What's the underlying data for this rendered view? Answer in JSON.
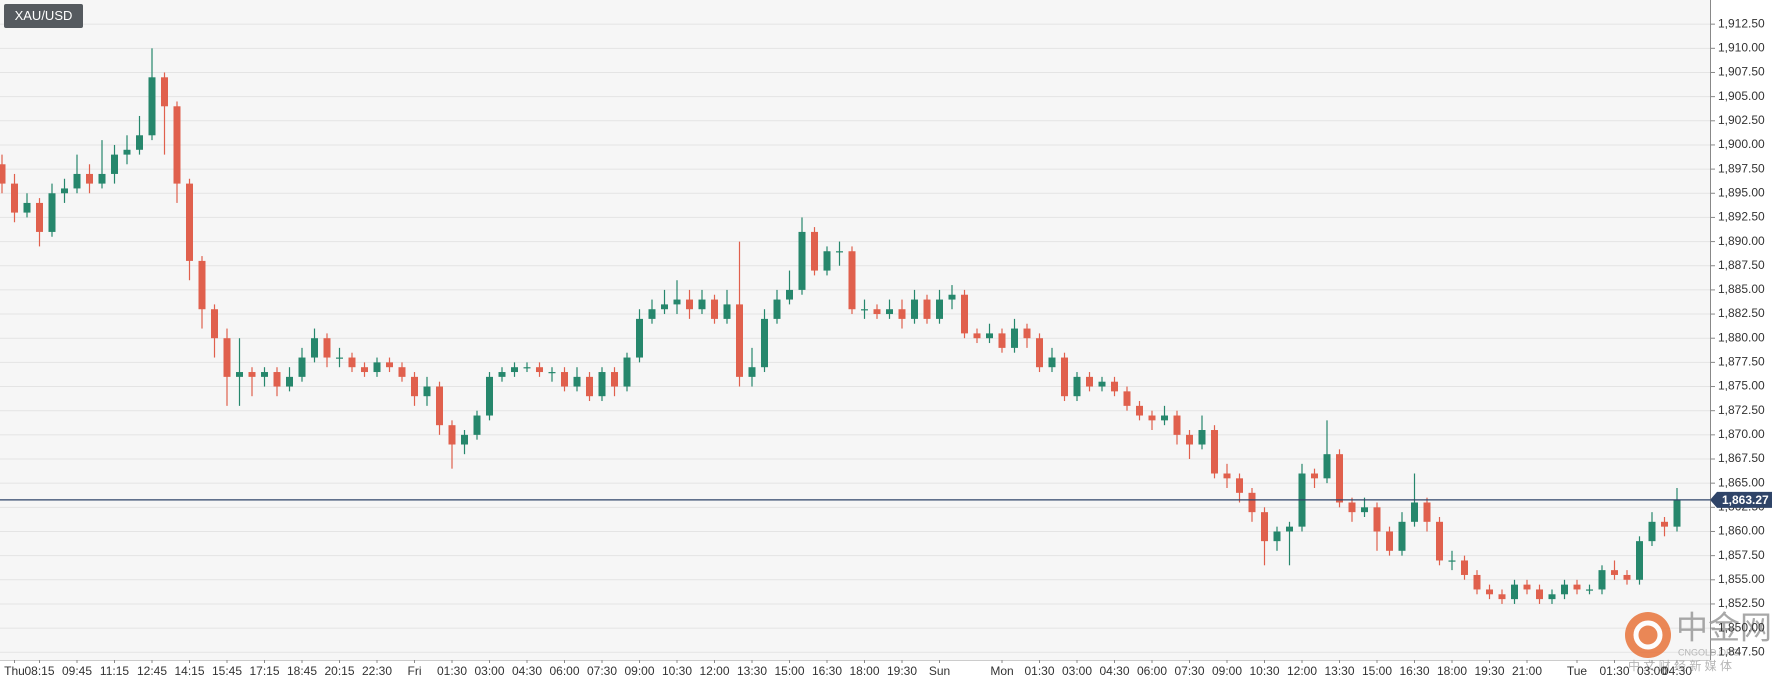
{
  "chart_data": {
    "type": "candlestick",
    "title": "XAU/USD",
    "up_color": "#26876c",
    "down_color": "#e0604d",
    "grid": true,
    "ylim": [
      1846.7,
      1915
    ],
    "yticks": [
      {
        "value": 1847.5,
        "label": "1,847.50"
      },
      {
        "value": 1850,
        "label": "1,850.00"
      },
      {
        "value": 1852.5,
        "label": "1,852.50"
      },
      {
        "value": 1855,
        "label": "1,855.00"
      },
      {
        "value": 1857.5,
        "label": "1,857.50"
      },
      {
        "value": 1860,
        "label": "1,860.00"
      },
      {
        "value": 1862.5,
        "label": "1,862.50"
      },
      {
        "value": 1865,
        "label": "1,865.00"
      },
      {
        "value": 1867.5,
        "label": "1,867.50"
      },
      {
        "value": 1870,
        "label": "1,870.00"
      },
      {
        "value": 1872.5,
        "label": "1,872.50"
      },
      {
        "value": 1875,
        "label": "1,875.00"
      },
      {
        "value": 1877.5,
        "label": "1,877.50"
      },
      {
        "value": 1880,
        "label": "1,880.00"
      },
      {
        "value": 1882.5,
        "label": "1,882.50"
      },
      {
        "value": 1885,
        "label": "1,885.00"
      },
      {
        "value": 1887.5,
        "label": "1,887.50"
      },
      {
        "value": 1890,
        "label": "1,890.00"
      },
      {
        "value": 1892.5,
        "label": "1,892.50"
      },
      {
        "value": 1895,
        "label": "1,895.00"
      },
      {
        "value": 1897.5,
        "label": "1,897.50"
      },
      {
        "value": 1900,
        "label": "1,900.00"
      },
      {
        "value": 1902.5,
        "label": "1,902.50"
      },
      {
        "value": 1905,
        "label": "1,905.00"
      },
      {
        "value": 1907.5,
        "label": "1,907.50"
      },
      {
        "value": 1910,
        "label": "1,910.00"
      },
      {
        "value": 1912.5,
        "label": "1,912.50"
      }
    ],
    "last_price": {
      "value": 1863.27,
      "label": "1,863.27"
    },
    "categories": [
      null,
      "Thu",
      null,
      "08:15",
      null,
      null,
      "09:45",
      null,
      null,
      "11:15",
      null,
      null,
      "12:45",
      null,
      null,
      "14:15",
      null,
      null,
      "15:45",
      null,
      null,
      "17:15",
      null,
      null,
      "18:45",
      null,
      null,
      "20:15",
      null,
      null,
      "22:30",
      null,
      null,
      "Fri",
      null,
      null,
      "01:30",
      null,
      null,
      "03:00",
      null,
      null,
      "04:30",
      null,
      null,
      "06:00",
      null,
      null,
      "07:30",
      null,
      null,
      "09:00",
      null,
      null,
      "10:30",
      null,
      null,
      "12:00",
      null,
      null,
      "13:30",
      null,
      null,
      "15:00",
      null,
      null,
      "16:30",
      null,
      null,
      "18:00",
      null,
      null,
      "19:30",
      null,
      null,
      "Sun",
      null,
      null,
      null,
      null,
      "Mon",
      null,
      null,
      "01:30",
      null,
      null,
      "03:00",
      null,
      null,
      "04:30",
      null,
      null,
      "06:00",
      null,
      null,
      "07:30",
      null,
      null,
      "09:00",
      null,
      null,
      "10:30",
      null,
      null,
      "12:00",
      null,
      null,
      "13:30",
      null,
      null,
      "15:00",
      null,
      null,
      "16:30",
      null,
      null,
      "18:00",
      null,
      null,
      "19:30",
      null,
      null,
      "21:00",
      null,
      null,
      null,
      "Tue",
      null,
      null,
      "01:30",
      null,
      null,
      "03:00",
      null,
      "04:30"
    ],
    "open": [
      1898,
      1896,
      1893,
      1894,
      1891,
      1895,
      1895.5,
      1897,
      1896,
      1897,
      1899,
      1899.5,
      1901,
      1907,
      1904,
      1896,
      1888,
      1883,
      1880,
      1876,
      1876.5,
      1876,
      1876.5,
      1875,
      1876,
      1878,
      1880,
      1878,
      1878,
      1877,
      1876.5,
      1877.5,
      1877,
      1876,
      1874,
      1875,
      1871,
      1869,
      1870,
      1872,
      1876,
      1876.5,
      1877,
      1877,
      1876.5,
      1876.5,
      1875,
      1876,
      1874,
      1876.5,
      1875,
      1878,
      1882,
      1883,
      1883.5,
      1884,
      1883,
      1884,
      1882,
      1883.5,
      1876,
      1877,
      1882,
      1884,
      1885,
      1891,
      1887,
      1889,
      1889,
      1883,
      1883,
      1882.5,
      1883,
      1882,
      1884,
      1882,
      1884,
      1884.5,
      1880.5,
      1880,
      1880.5,
      1879,
      1881,
      1880,
      1877,
      1878,
      1874,
      1876,
      1875,
      1875.5,
      1874.5,
      1873,
      1872,
      1871.5,
      1872,
      1870,
      1869,
      1870.5,
      1866,
      1865.5,
      1864,
      1862,
      1859,
      1860,
      1860.5,
      1866,
      1865.5,
      1868,
      1863,
      1862,
      1862.5,
      1860,
      1858,
      1861,
      1863,
      1861,
      1857,
      1857,
      1855.5,
      1854,
      1853.5,
      1853,
      1854.5,
      1854,
      1853,
      1853.5,
      1854.5,
      1854,
      1854,
      1856,
      1855.5,
      1855,
      1859,
      1861,
      1860.5
    ],
    "high": [
      1899,
      1897,
      1895,
      1894.5,
      1896,
      1896.5,
      1899,
      1898,
      1900.5,
      1900,
      1901,
      1903,
      1910,
      1907.5,
      1904.5,
      1896.5,
      1888.5,
      1883.5,
      1881,
      1880,
      1877,
      1877,
      1877,
      1877,
      1879,
      1881,
      1880.5,
      1879,
      1878.5,
      1877.5,
      1878,
      1878,
      1877.5,
      1876.5,
      1876,
      1875.5,
      1871.5,
      1870.5,
      1872.5,
      1876.5,
      1877,
      1877.5,
      1877.5,
      1877.5,
      1877,
      1877,
      1877,
      1876.5,
      1877,
      1877,
      1878.5,
      1883,
      1884,
      1885,
      1886,
      1885,
      1885,
      1884.5,
      1885,
      1890,
      1879,
      1883,
      1885,
      1887,
      1892.5,
      1891.5,
      1889.5,
      1890,
      1889.5,
      1884,
      1883.5,
      1884,
      1884,
      1885,
      1884.5,
      1885,
      1885.5,
      1885,
      1881,
      1881.5,
      1881,
      1882,
      1881.5,
      1880.5,
      1879,
      1878.5,
      1876.5,
      1876.5,
      1876,
      1876,
      1875,
      1873.5,
      1872.5,
      1873,
      1872.5,
      1870.5,
      1872,
      1871,
      1867,
      1866,
      1864.5,
      1862.5,
      1860.5,
      1861,
      1867,
      1866.5,
      1871.5,
      1868.5,
      1863.5,
      1863.5,
      1863,
      1860.5,
      1862,
      1866,
      1863.5,
      1861.5,
      1858,
      1857.5,
      1856,
      1854.5,
      1854,
      1855,
      1855,
      1854.5,
      1854,
      1855,
      1855,
      1854.5,
      1856.5,
      1857,
      1856,
      1859.5,
      1862,
      1861.5,
      1864.5
    ],
    "low": [
      1895,
      1892,
      1892.5,
      1889.5,
      1890.5,
      1894,
      1895,
      1895,
      1895.5,
      1896,
      1898,
      1899,
      1900.5,
      1899,
      1894,
      1886,
      1881,
      1878,
      1873,
      1873,
      1874,
      1875,
      1874,
      1874.5,
      1875.5,
      1877.5,
      1877,
      1877,
      1876.5,
      1876,
      1876,
      1876.5,
      1875.5,
      1873,
      1873,
      1870,
      1866.5,
      1868,
      1869.5,
      1871.5,
      1875.5,
      1876,
      1876.5,
      1876,
      1875.5,
      1874.5,
      1874.5,
      1873.5,
      1873.5,
      1874,
      1874.5,
      1877.5,
      1881.5,
      1882.5,
      1882.5,
      1882,
      1882.5,
      1881.5,
      1881.5,
      1875,
      1875,
      1876.5,
      1881.5,
      1883.5,
      1884.5,
      1886.5,
      1886.5,
      1887.5,
      1882.5,
      1882,
      1882,
      1882,
      1881,
      1881.5,
      1881.5,
      1881.5,
      1883,
      1880,
      1879.5,
      1879.5,
      1878.5,
      1878.5,
      1879,
      1876.5,
      1876.5,
      1873.5,
      1873.5,
      1874.5,
      1874.5,
      1874,
      1872.5,
      1871.5,
      1870.5,
      1871,
      1869,
      1867.5,
      1868.5,
      1865.5,
      1864.5,
      1863,
      1861,
      1856.5,
      1858,
      1856.5,
      1860,
      1864.5,
      1865,
      1862.5,
      1861,
      1861.5,
      1858,
      1857.5,
      1857.5,
      1860.5,
      1860,
      1856.5,
      1856,
      1855,
      1853.5,
      1853,
      1852.5,
      1852.5,
      1853.5,
      1852.5,
      1852.5,
      1853,
      1853.5,
      1853.5,
      1853.5,
      1855,
      1854.5,
      1854.5,
      1858.5,
      1859.5,
      1860
    ],
    "close": [
      1896,
      1893,
      1894,
      1891,
      1895,
      1895.5,
      1897,
      1896,
      1897,
      1899,
      1899.5,
      1901,
      1907,
      1904,
      1896,
      1888,
      1883,
      1880,
      1876,
      1876.5,
      1876,
      1876.5,
      1875,
      1876,
      1878,
      1880,
      1878,
      1878,
      1877,
      1876.5,
      1877.5,
      1877,
      1876,
      1874,
      1875,
      1871,
      1869,
      1870,
      1872,
      1876,
      1876.5,
      1877,
      1877,
      1876.5,
      1876.5,
      1875,
      1876,
      1874,
      1876.5,
      1875,
      1878,
      1882,
      1883,
      1883.5,
      1884,
      1883,
      1884,
      1882,
      1883.5,
      1876,
      1877,
      1882,
      1884,
      1885,
      1891,
      1887,
      1889,
      1889,
      1883,
      1883,
      1882.5,
      1883,
      1882,
      1884,
      1882,
      1884,
      1884.5,
      1880.5,
      1880,
      1880.5,
      1879,
      1881,
      1880,
      1877,
      1878,
      1874,
      1876,
      1875,
      1875.5,
      1874.5,
      1873,
      1872,
      1871.5,
      1872,
      1870,
      1869,
      1870.5,
      1866,
      1865.5,
      1864,
      1862,
      1859,
      1860,
      1860.5,
      1866,
      1865.5,
      1868,
      1863,
      1862,
      1862.5,
      1860,
      1858,
      1861,
      1863,
      1861,
      1857,
      1857,
      1855.5,
      1854,
      1853.5,
      1853,
      1854.5,
      1854,
      1853,
      1853.5,
      1854.5,
      1854,
      1854,
      1856,
      1855.5,
      1855,
      1859,
      1861,
      1860.5,
      1863.27
    ]
  },
  "watermark": {
    "brand": "中金网",
    "site": "CNGOLD.ORG",
    "slogan": "中 文 财 经 新 媒 体"
  }
}
